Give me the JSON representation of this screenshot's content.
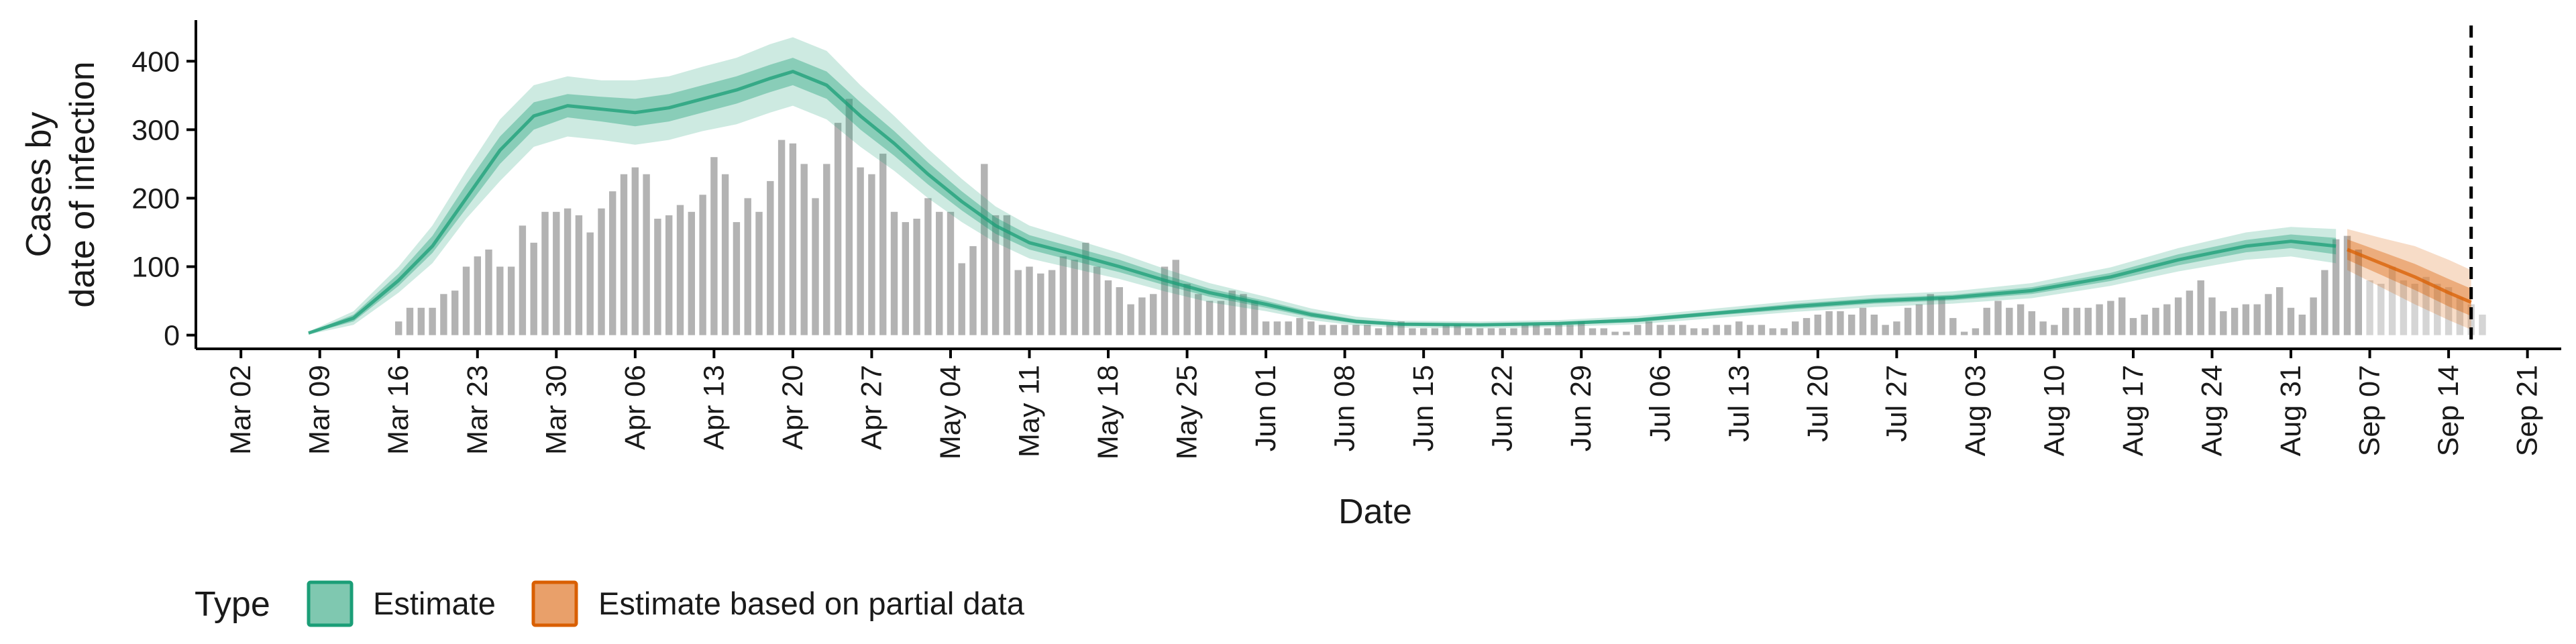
{
  "chart_data": {
    "type": "bar",
    "xlabel": "Date",
    "ylabel_lines": [
      "Cases by",
      "date of infection"
    ],
    "x_domain": [
      "2020-02-27",
      "2020-09-24"
    ],
    "ylim": [
      -20,
      460
    ],
    "yticks": [
      0,
      100,
      200,
      300,
      400
    ],
    "xticks": [
      {
        "date": "2020-03-02",
        "label": "Mar 02"
      },
      {
        "date": "2020-03-09",
        "label": "Mar 09"
      },
      {
        "date": "2020-03-16",
        "label": "Mar 16"
      },
      {
        "date": "2020-03-23",
        "label": "Mar 23"
      },
      {
        "date": "2020-03-30",
        "label": "Mar 30"
      },
      {
        "date": "2020-04-06",
        "label": "Apr 06"
      },
      {
        "date": "2020-04-13",
        "label": "Apr 13"
      },
      {
        "date": "2020-04-20",
        "label": "Apr 20"
      },
      {
        "date": "2020-04-27",
        "label": "Apr 27"
      },
      {
        "date": "2020-05-04",
        "label": "May 04"
      },
      {
        "date": "2020-05-11",
        "label": "May 11"
      },
      {
        "date": "2020-05-18",
        "label": "May 18"
      },
      {
        "date": "2020-05-25",
        "label": "May 25"
      },
      {
        "date": "2020-06-01",
        "label": "Jun 01"
      },
      {
        "date": "2020-06-08",
        "label": "Jun 08"
      },
      {
        "date": "2020-06-15",
        "label": "Jun 15"
      },
      {
        "date": "2020-06-22",
        "label": "Jun 22"
      },
      {
        "date": "2020-06-29",
        "label": "Jun 29"
      },
      {
        "date": "2020-07-06",
        "label": "Jul 06"
      },
      {
        "date": "2020-07-13",
        "label": "Jul 13"
      },
      {
        "date": "2020-07-20",
        "label": "Jul 20"
      },
      {
        "date": "2020-07-27",
        "label": "Jul 27"
      },
      {
        "date": "2020-08-03",
        "label": "Aug 03"
      },
      {
        "date": "2020-08-10",
        "label": "Aug 10"
      },
      {
        "date": "2020-08-17",
        "label": "Aug 17"
      },
      {
        "date": "2020-08-24",
        "label": "Aug 24"
      },
      {
        "date": "2020-08-31",
        "label": "Aug 31"
      },
      {
        "date": "2020-09-07",
        "label": "Sep 07"
      },
      {
        "date": "2020-09-14",
        "label": "Sep 14"
      },
      {
        "date": "2020-09-21",
        "label": "Sep 21"
      }
    ],
    "cutoff_date": "2020-09-16",
    "grid": false,
    "bar_series": {
      "start": "2020-03-16",
      "color": "#b3b3b3",
      "values": [
        20,
        40,
        40,
        40,
        60,
        65,
        100,
        115,
        125,
        100,
        100,
        160,
        135,
        180,
        180,
        185,
        175,
        150,
        185,
        210,
        235,
        245,
        235,
        170,
        175,
        190,
        180,
        205,
        260,
        235,
        165,
        200,
        180,
        225,
        285,
        280,
        250,
        200,
        250,
        310,
        345,
        245,
        235,
        265,
        180,
        165,
        170,
        200,
        180,
        180,
        105,
        130,
        250,
        175,
        175,
        95,
        100,
        90,
        95,
        115,
        110,
        135,
        100,
        80,
        70,
        45,
        55,
        60,
        100,
        110,
        75,
        60,
        50,
        50,
        65,
        60,
        50,
        20,
        20,
        20,
        25,
        20,
        15,
        15,
        15,
        15,
        15,
        10,
        15,
        20,
        10,
        10,
        10,
        15,
        15,
        10,
        10,
        10,
        10,
        10,
        15,
        15,
        10,
        15,
        15,
        20,
        10,
        10,
        5,
        5,
        15,
        20,
        15,
        15,
        15,
        10,
        10,
        15,
        15,
        20,
        15,
        15,
        10,
        10,
        20,
        25,
        30,
        35,
        35,
        30,
        40,
        30,
        15,
        20,
        40,
        45,
        60,
        55,
        25,
        5,
        10,
        40,
        50,
        40,
        45,
        35,
        20,
        15,
        40,
        40,
        40,
        45,
        50,
        55,
        25,
        30,
        40,
        45,
        55,
        65,
        80,
        55,
        35,
        40,
        45,
        45,
        60,
        70,
        40,
        30,
        55,
        95,
        140,
        145,
        125,
        80,
        75,
        100,
        80,
        75,
        85,
        75,
        70,
        55,
        45,
        30
      ],
      "dashed_from_index": 175
    },
    "estimate": {
      "name": "Estimate",
      "color": "#1b9e77",
      "start": "2020-03-08",
      "points": [
        {
          "date": "2020-03-08",
          "m": 3,
          "l50": 2,
          "u50": 4,
          "l90": 1,
          "u90": 5
        },
        {
          "date": "2020-03-12",
          "m": 25,
          "l50": 20,
          "u50": 30,
          "l90": 15,
          "u90": 35
        },
        {
          "date": "2020-03-16",
          "m": 80,
          "l50": 72,
          "u50": 90,
          "l90": 62,
          "u90": 100
        },
        {
          "date": "2020-03-19",
          "m": 130,
          "l50": 120,
          "u50": 145,
          "l90": 105,
          "u90": 160
        },
        {
          "date": "2020-03-22",
          "m": 200,
          "l50": 185,
          "u50": 220,
          "l90": 170,
          "u90": 240
        },
        {
          "date": "2020-03-25",
          "m": 270,
          "l50": 250,
          "u50": 290,
          "l90": 225,
          "u90": 315
        },
        {
          "date": "2020-03-28",
          "m": 320,
          "l50": 300,
          "u50": 340,
          "l90": 275,
          "u90": 365
        },
        {
          "date": "2020-03-31",
          "m": 335,
          "l50": 318,
          "u50": 352,
          "l90": 290,
          "u90": 378
        },
        {
          "date": "2020-04-03",
          "m": 330,
          "l50": 312,
          "u50": 348,
          "l90": 285,
          "u90": 372
        },
        {
          "date": "2020-04-06",
          "m": 325,
          "l50": 305,
          "u50": 345,
          "l90": 278,
          "u90": 372
        },
        {
          "date": "2020-04-09",
          "m": 332,
          "l50": 312,
          "u50": 352,
          "l90": 285,
          "u90": 378
        },
        {
          "date": "2020-04-12",
          "m": 345,
          "l50": 325,
          "u50": 365,
          "l90": 298,
          "u90": 392
        },
        {
          "date": "2020-04-15",
          "m": 358,
          "l50": 338,
          "u50": 378,
          "l90": 308,
          "u90": 405
        },
        {
          "date": "2020-04-18",
          "m": 375,
          "l50": 355,
          "u50": 395,
          "l90": 325,
          "u90": 425
        },
        {
          "date": "2020-04-20",
          "m": 385,
          "l50": 365,
          "u50": 405,
          "l90": 335,
          "u90": 435
        },
        {
          "date": "2020-04-23",
          "m": 365,
          "l50": 345,
          "u50": 385,
          "l90": 315,
          "u90": 415
        },
        {
          "date": "2020-04-26",
          "m": 320,
          "l50": 300,
          "u50": 340,
          "l90": 275,
          "u90": 365
        },
        {
          "date": "2020-04-29",
          "m": 280,
          "l50": 262,
          "u50": 298,
          "l90": 240,
          "u90": 320
        },
        {
          "date": "2020-05-02",
          "m": 235,
          "l50": 220,
          "u50": 252,
          "l90": 200,
          "u90": 272
        },
        {
          "date": "2020-05-05",
          "m": 195,
          "l50": 182,
          "u50": 210,
          "l90": 165,
          "u90": 228
        },
        {
          "date": "2020-05-08",
          "m": 160,
          "l50": 148,
          "u50": 172,
          "l90": 135,
          "u90": 188
        },
        {
          "date": "2020-05-11",
          "m": 135,
          "l50": 125,
          "u50": 146,
          "l90": 112,
          "u90": 160
        },
        {
          "date": "2020-05-15",
          "m": 118,
          "l50": 108,
          "u50": 128,
          "l90": 97,
          "u90": 140
        },
        {
          "date": "2020-05-19",
          "m": 100,
          "l50": 92,
          "u50": 110,
          "l90": 82,
          "u90": 120
        },
        {
          "date": "2020-05-23",
          "m": 80,
          "l50": 73,
          "u50": 88,
          "l90": 64,
          "u90": 97
        },
        {
          "date": "2020-05-27",
          "m": 62,
          "l50": 56,
          "u50": 68,
          "l90": 48,
          "u90": 76
        },
        {
          "date": "2020-06-01",
          "m": 45,
          "l50": 40,
          "u50": 50,
          "l90": 35,
          "u90": 56
        },
        {
          "date": "2020-06-05",
          "m": 30,
          "l50": 26,
          "u50": 34,
          "l90": 22,
          "u90": 39
        },
        {
          "date": "2020-06-09",
          "m": 20,
          "l50": 17,
          "u50": 23,
          "l90": 14,
          "u90": 27
        },
        {
          "date": "2020-06-13",
          "m": 16,
          "l50": 14,
          "u50": 18,
          "l90": 11,
          "u90": 21
        },
        {
          "date": "2020-06-20",
          "m": 15,
          "l50": 13,
          "u50": 17,
          "l90": 10,
          "u90": 20
        },
        {
          "date": "2020-06-27",
          "m": 17,
          "l50": 15,
          "u50": 19,
          "l90": 12,
          "u90": 22
        },
        {
          "date": "2020-07-04",
          "m": 22,
          "l50": 19,
          "u50": 25,
          "l90": 16,
          "u90": 28
        },
        {
          "date": "2020-07-11",
          "m": 32,
          "l50": 29,
          "u50": 35,
          "l90": 25,
          "u90": 39
        },
        {
          "date": "2020-07-18",
          "m": 42,
          "l50": 38,
          "u50": 46,
          "l90": 34,
          "u90": 50
        },
        {
          "date": "2020-07-25",
          "m": 50,
          "l50": 46,
          "u50": 54,
          "l90": 41,
          "u90": 59
        },
        {
          "date": "2020-08-01",
          "m": 55,
          "l50": 51,
          "u50": 59,
          "l90": 46,
          "u90": 64
        },
        {
          "date": "2020-08-08",
          "m": 65,
          "l50": 60,
          "u50": 70,
          "l90": 54,
          "u90": 76
        },
        {
          "date": "2020-08-15",
          "m": 85,
          "l50": 79,
          "u50": 91,
          "l90": 72,
          "u90": 99
        },
        {
          "date": "2020-08-21",
          "m": 110,
          "l50": 102,
          "u50": 118,
          "l90": 93,
          "u90": 127
        },
        {
          "date": "2020-08-27",
          "m": 130,
          "l50": 121,
          "u50": 139,
          "l90": 110,
          "u90": 150
        },
        {
          "date": "2020-08-31",
          "m": 137,
          "l50": 127,
          "u50": 147,
          "l90": 115,
          "u90": 158
        },
        {
          "date": "2020-09-04",
          "m": 130,
          "l50": 118,
          "u50": 142,
          "l90": 105,
          "u90": 155
        }
      ]
    },
    "estimate_partial": {
      "name": "Estimate based on partial data",
      "color": "#d95f02",
      "points": [
        {
          "date": "2020-09-05",
          "m": 125,
          "l50": 110,
          "u50": 140,
          "l90": 95,
          "u90": 155
        },
        {
          "date": "2020-09-08",
          "m": 105,
          "l50": 88,
          "u50": 122,
          "l90": 70,
          "u90": 142
        },
        {
          "date": "2020-09-11",
          "m": 85,
          "l50": 66,
          "u50": 104,
          "l90": 45,
          "u90": 130
        },
        {
          "date": "2020-09-14",
          "m": 62,
          "l50": 42,
          "u50": 82,
          "l90": 22,
          "u90": 110
        },
        {
          "date": "2020-09-16",
          "m": 48,
          "l50": 28,
          "u50": 68,
          "l90": 8,
          "u90": 95
        }
      ]
    },
    "legend": {
      "title": "Type",
      "placement": "bottom-left",
      "items": [
        {
          "label": "Estimate",
          "fill": "#7fc8b0",
          "stroke": "#1b9e77"
        },
        {
          "label": "Estimate based on partial data",
          "fill": "#e9a06a",
          "stroke": "#d95f02"
        }
      ]
    }
  }
}
